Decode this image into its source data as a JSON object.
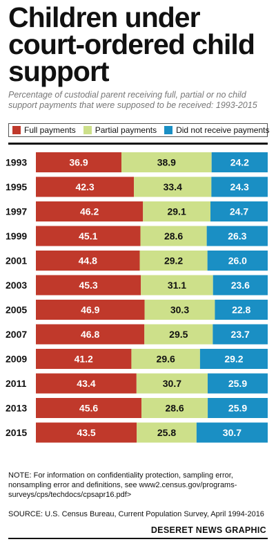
{
  "chart_data": {
    "type": "bar",
    "orientation": "horizontal",
    "stacked": true,
    "title": "Children under court-ordered child support",
    "subtitle": "Percentage of custodial parent receiving full, partial or no child support payments that were supposed to be received: 1993-2015",
    "categories": [
      "1993",
      "1995",
      "1997",
      "1999",
      "2001",
      "2003",
      "2005",
      "2007",
      "2009",
      "2011",
      "2013",
      "2015"
    ],
    "series": [
      {
        "name": "Full payments",
        "color": "#c0392b",
        "values": [
          36.9,
          42.3,
          46.2,
          45.1,
          44.8,
          45.3,
          46.9,
          46.8,
          41.2,
          43.4,
          45.6,
          43.5
        ]
      },
      {
        "name": "Partial payments",
        "color": "#cde08a",
        "values": [
          38.9,
          33.4,
          29.1,
          28.6,
          29.2,
          31.1,
          30.3,
          29.5,
          29.6,
          30.7,
          28.6,
          25.8
        ]
      },
      {
        "name": "Did not receive payments",
        "color": "#1a8fc4",
        "values": [
          24.2,
          24.3,
          24.7,
          26.3,
          26.0,
          23.6,
          22.8,
          23.7,
          29.2,
          25.9,
          25.9,
          30.7
        ]
      }
    ],
    "legend_position": "top",
    "grid": false
  },
  "note": "NOTE: For information on confidentiality protection, sampling error, nonsampling error and definitions, see www2.census.gov/programs-surveys/cps/techdocs/cpsapr16.pdf>",
  "source": "SOURCE: U.S. Census Bureau, Current Population Survey, April 1994-2016",
  "credit": "DESERET NEWS GRAPHIC"
}
